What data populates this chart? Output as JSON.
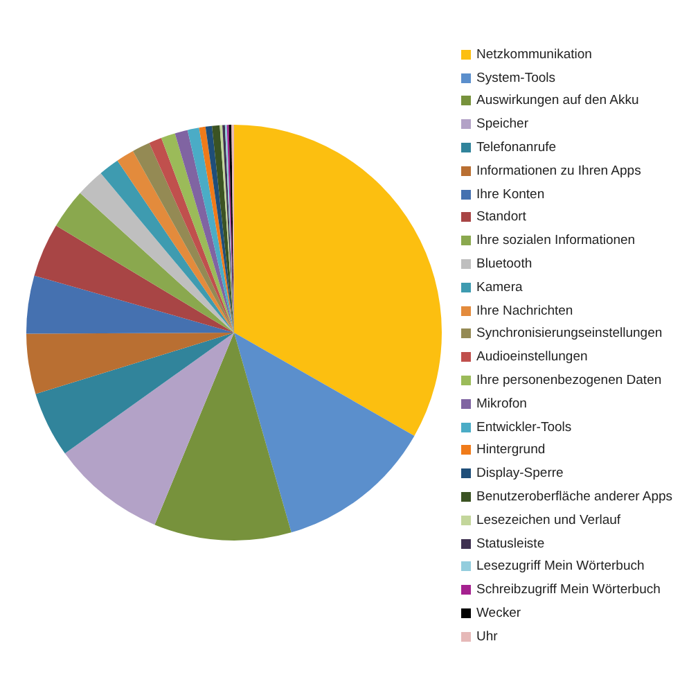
{
  "chart_data": {
    "type": "pie",
    "categories": [
      "Netzkommunikation",
      "System-Tools",
      "Auswirkungen auf den Akku",
      "Speicher",
      "Telefonanrufe",
      "Informationen zu Ihren Apps",
      "Ihre Konten",
      "Standort",
      "Ihre sozialen Informationen",
      "Bluetooth",
      "Kamera",
      "Ihre Nachrichten",
      "Synchronisierungseinstellungen",
      "Audioeinstellungen",
      "Ihre personenbezogenen Daten",
      "Mikrofon",
      "Entwickler-Tools",
      "Hintergrund",
      "Display-Sperre",
      "Benutzeroberfläche anderer Apps",
      "Lesezeichen und Verlauf",
      "Statusleiste",
      "Lesezugriff Mein Wörterbuch",
      "Schreibzugriff Mein Wörterbuch",
      "Wecker",
      "Uhr"
    ],
    "values": [
      33.3,
      12.3,
      10.7,
      8.9,
      5.1,
      4.7,
      4.5,
      4.2,
      3.1,
      2.2,
      1.6,
      1.4,
      1.4,
      1.0,
      1.1,
      1.0,
      0.9,
      0.5,
      0.5,
      0.6,
      0.2,
      0.2,
      0.15,
      0.15,
      0.2,
      0.2
    ],
    "colors": [
      "#fcbf10",
      "#5b8fcc",
      "#77923c",
      "#b3a2c7",
      "#31849b",
      "#b96f32",
      "#4571b0",
      "#a84545",
      "#8aa84e",
      "#bfbfbf",
      "#3e9bb0",
      "#e38b3c",
      "#948a54",
      "#c0504d",
      "#9bbb59",
      "#8064a2",
      "#4bacc6",
      "#f07b1a",
      "#1f4e79",
      "#3b5323",
      "#c3d69b",
      "#3f3151",
      "#93cddd",
      "#a5218f",
      "#000000",
      "#e6b9b8"
    ],
    "legend": "right"
  }
}
